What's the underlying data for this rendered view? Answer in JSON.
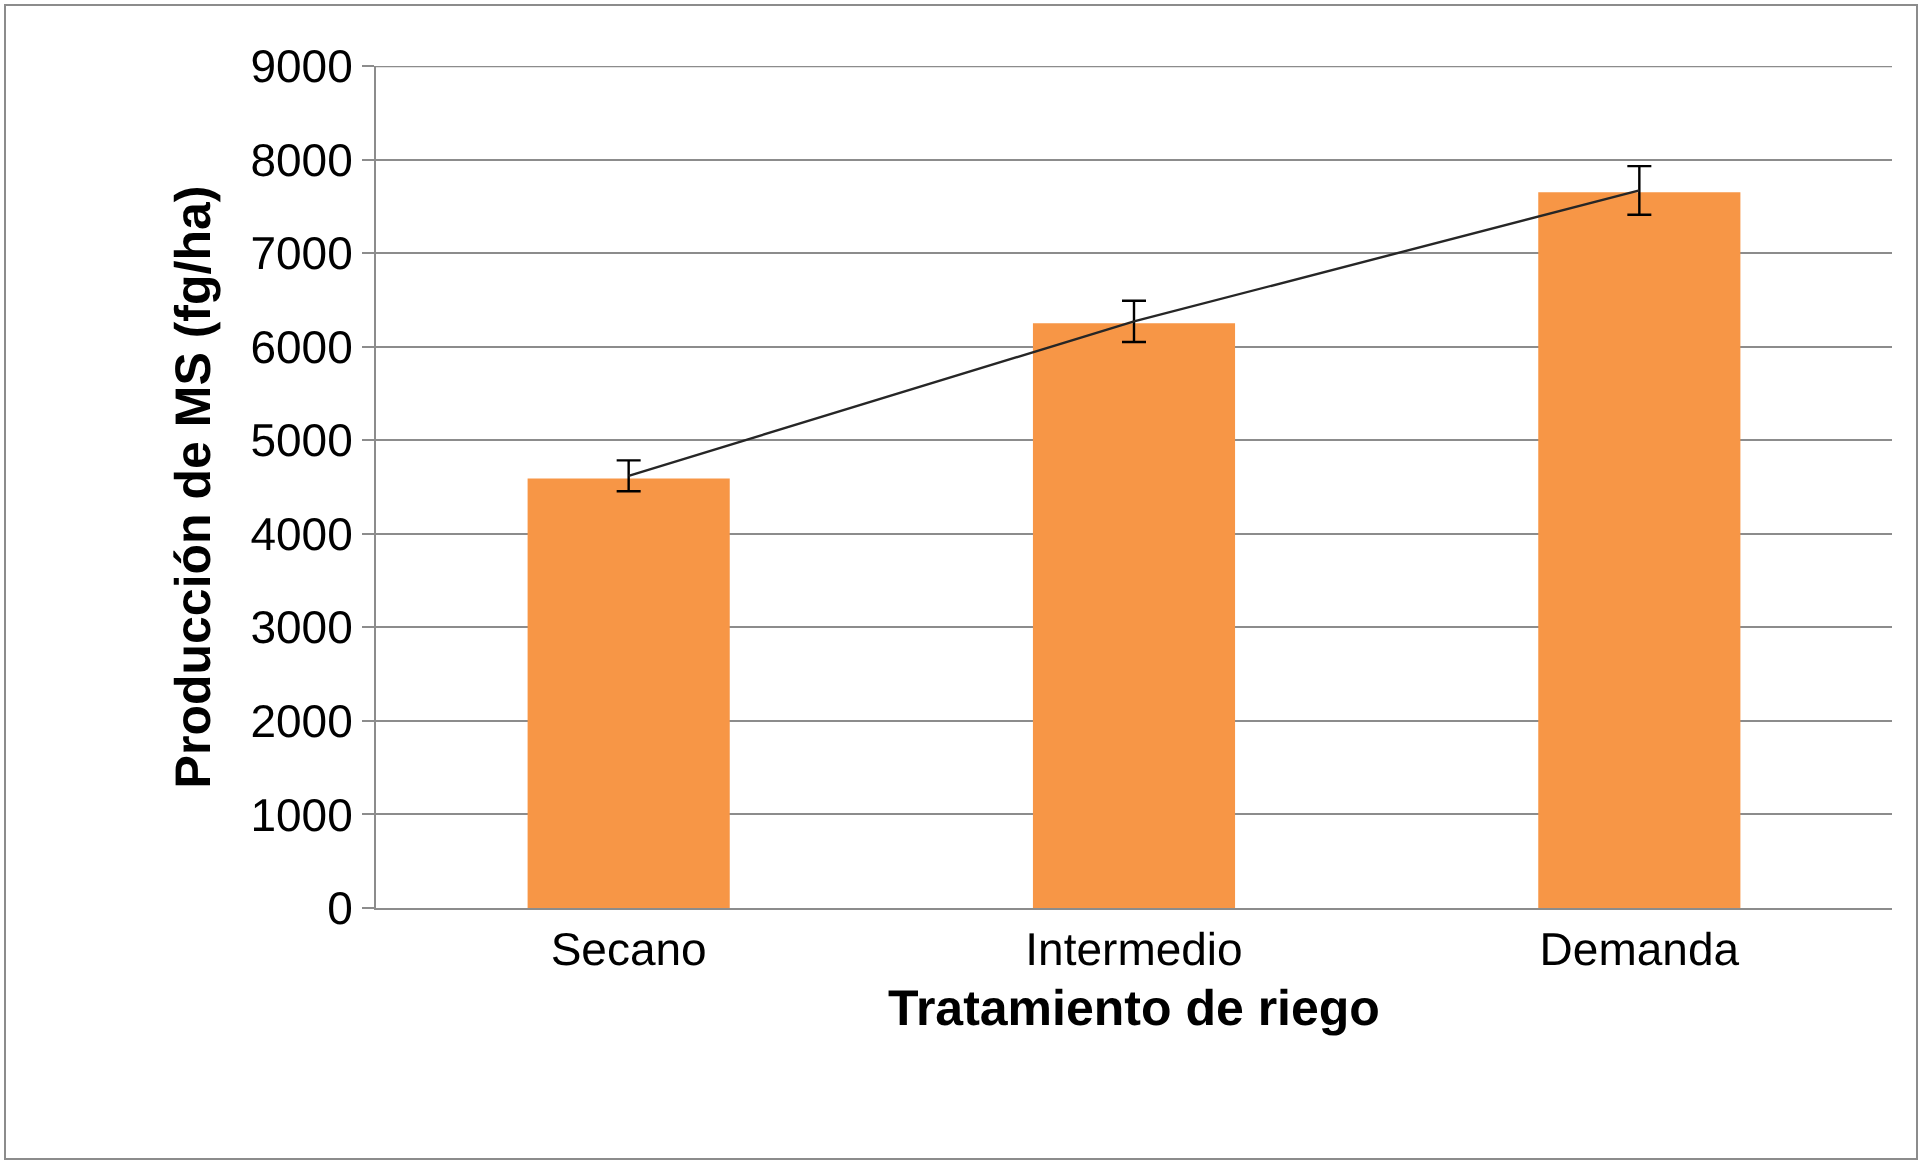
{
  "chart_data": {
    "type": "bar",
    "xlabel": "Tratamiento de riego",
    "ylabel": "Producción de MS (fg/ha)",
    "categories": [
      "Secano",
      "Intermedio",
      "Demanda"
    ],
    "series": [
      {
        "color": "#f79646",
        "values": [
          4590,
          6250,
          7650
        ]
      },
      {
        "type": "line",
        "color": "#262626",
        "values": [
          4620,
          6270,
          7670
        ],
        "errors": [
          165,
          220,
          260
        ],
        "marker": "none",
        "line_style": "solid"
      }
    ],
    "ylim": [
      0,
      9000
    ],
    "yticks": [
      0,
      1000,
      2000,
      3000,
      4000,
      5000,
      6000,
      7000,
      8000,
      9000
    ],
    "grid": "y",
    "legend": false
  }
}
